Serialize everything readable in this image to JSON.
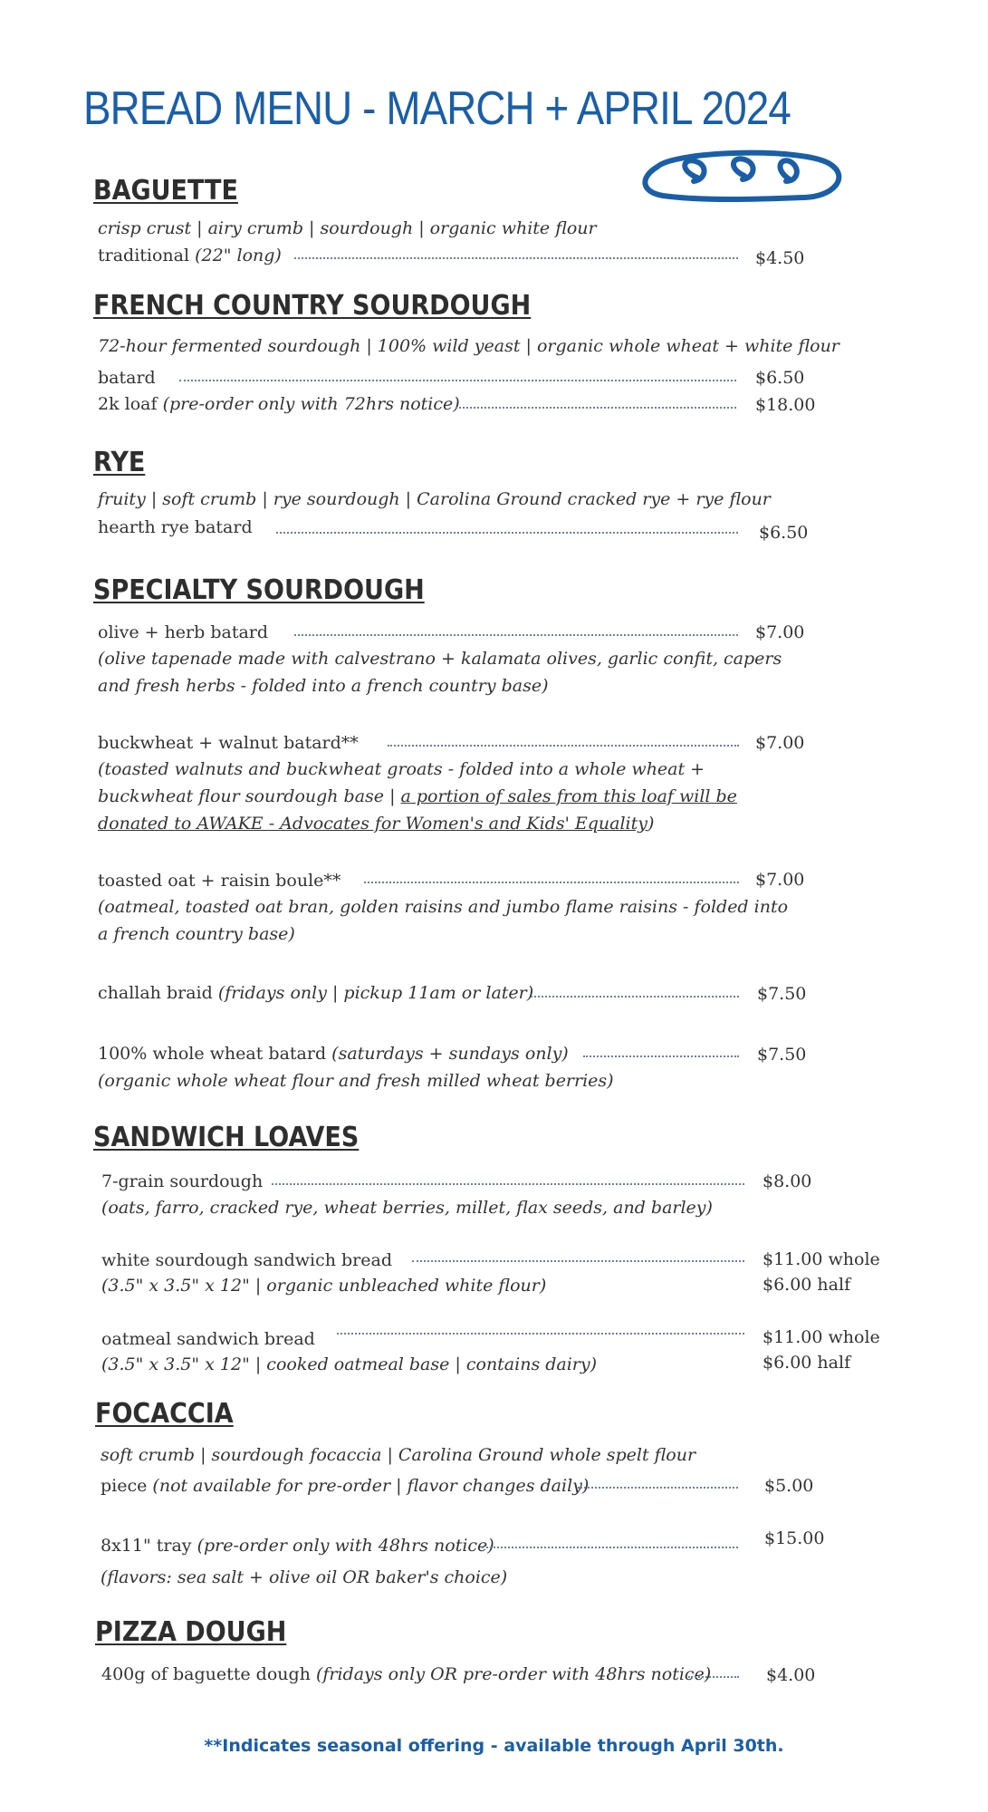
{
  "title": "BREAD MENU - MARCH + APRIL 2024",
  "icon": "bread-loaf-icon",
  "accent_color": "#1a5ea8",
  "sections": {
    "baguette": {
      "heading": "BAGUETTE",
      "desc": "crisp crust | airy crumb | sourdough | organic white flour",
      "items": [
        {
          "name": "traditional ",
          "qual": "(22\" long)",
          "price": "$4.50"
        }
      ]
    },
    "french": {
      "heading": "FRENCH COUNTRY SOURDOUGH",
      "desc": "72-hour fermented sourdough | 100% wild yeast | organic whole wheat + white flour",
      "items": [
        {
          "name": "batard",
          "qual": "",
          "price": "$6.50"
        },
        {
          "name": "2k loaf ",
          "qual": "(pre-order only with 72hrs notice)",
          "price": "$18.00"
        }
      ]
    },
    "rye": {
      "heading": "RYE",
      "desc": "fruity | soft crumb | rye sourdough | Carolina Ground cracked rye + rye flour",
      "items": [
        {
          "name": "hearth rye batard",
          "qual": "",
          "price": "$6.50"
        }
      ]
    },
    "specialty": {
      "heading": "SPECIALTY SOURDOUGH",
      "items": [
        {
          "name": "olive + herb batard",
          "qual": "",
          "price": "$7.00",
          "note": [
            "(olive tapenade made with calvestrano + kalamata olives, garlic confit, capers",
            "and fresh herbs - folded into a french country base)"
          ]
        },
        {
          "name": "buckwheat + walnut batard**",
          "qual": "",
          "price": "$7.00",
          "note": [
            "(toasted walnuts and buckwheat groats - folded into a whole wheat +",
            "buckwheat flour sourdough base | "
          ],
          "note_link": [
            "a portion of sales from this loaf will be",
            "donated to AWAKE - Advocates for Women's and Kids' Equality"
          ],
          "note_end": ")"
        },
        {
          "name": "toasted oat + raisin boule**",
          "qual": "",
          "price": "$7.00",
          "note": [
            "(oatmeal, toasted oat bran, golden raisins and jumbo flame raisins - folded into",
            "a french country base)"
          ]
        },
        {
          "name": "challah braid ",
          "qual": "(fridays only | pickup 11am or later)",
          "price": "$7.50"
        },
        {
          "name": "100% whole wheat batard ",
          "qual": "(saturdays + sundays only)",
          "price": "$7.50",
          "note": [
            "(organic whole wheat flour and fresh milled wheat berries)"
          ]
        }
      ]
    },
    "sandwich": {
      "heading": "SANDWICH LOAVES",
      "items": [
        {
          "name": "7-grain sourdough",
          "qual": "",
          "price": "$8.00",
          "note": [
            "(oats, farro, cracked rye, wheat berries, millet, flax seeds, and barley)"
          ]
        },
        {
          "name": "white sourdough sandwich bread",
          "qual": "",
          "price": "$11.00 whole",
          "price2": "$6.00 half",
          "note": [
            "(3.5\" x 3.5\" x 12\" | organic unbleached white flour)"
          ]
        },
        {
          "name": "oatmeal sandwich bread",
          "qual": "",
          "price": "$11.00 whole",
          "price2": "$6.00 half",
          "note": [
            "(3.5\" x 3.5\" x 12\" | cooked oatmeal base | contains dairy)"
          ]
        }
      ]
    },
    "focaccia": {
      "heading": "FOCACCIA",
      "desc": "soft crumb | sourdough focaccia | Carolina Ground whole spelt flour",
      "items": [
        {
          "name": "piece ",
          "qual": "(not available for pre-order | flavor changes daily)",
          "price": "$5.00"
        },
        {
          "name": "8x11\" tray ",
          "qual": "(pre-order only with 48hrs notice)",
          "price": "$15.00",
          "note": [
            "(flavors: sea salt + olive oil OR baker's choice)"
          ]
        }
      ]
    },
    "pizza": {
      "heading": "PIZZA DOUGH",
      "items": [
        {
          "name": "400g of baguette dough ",
          "qual": "(fridays only OR pre-order with 48hrs notice)",
          "price": "$4.00"
        }
      ]
    }
  },
  "footer": "**Indicates seasonal offering - available through April 30th."
}
